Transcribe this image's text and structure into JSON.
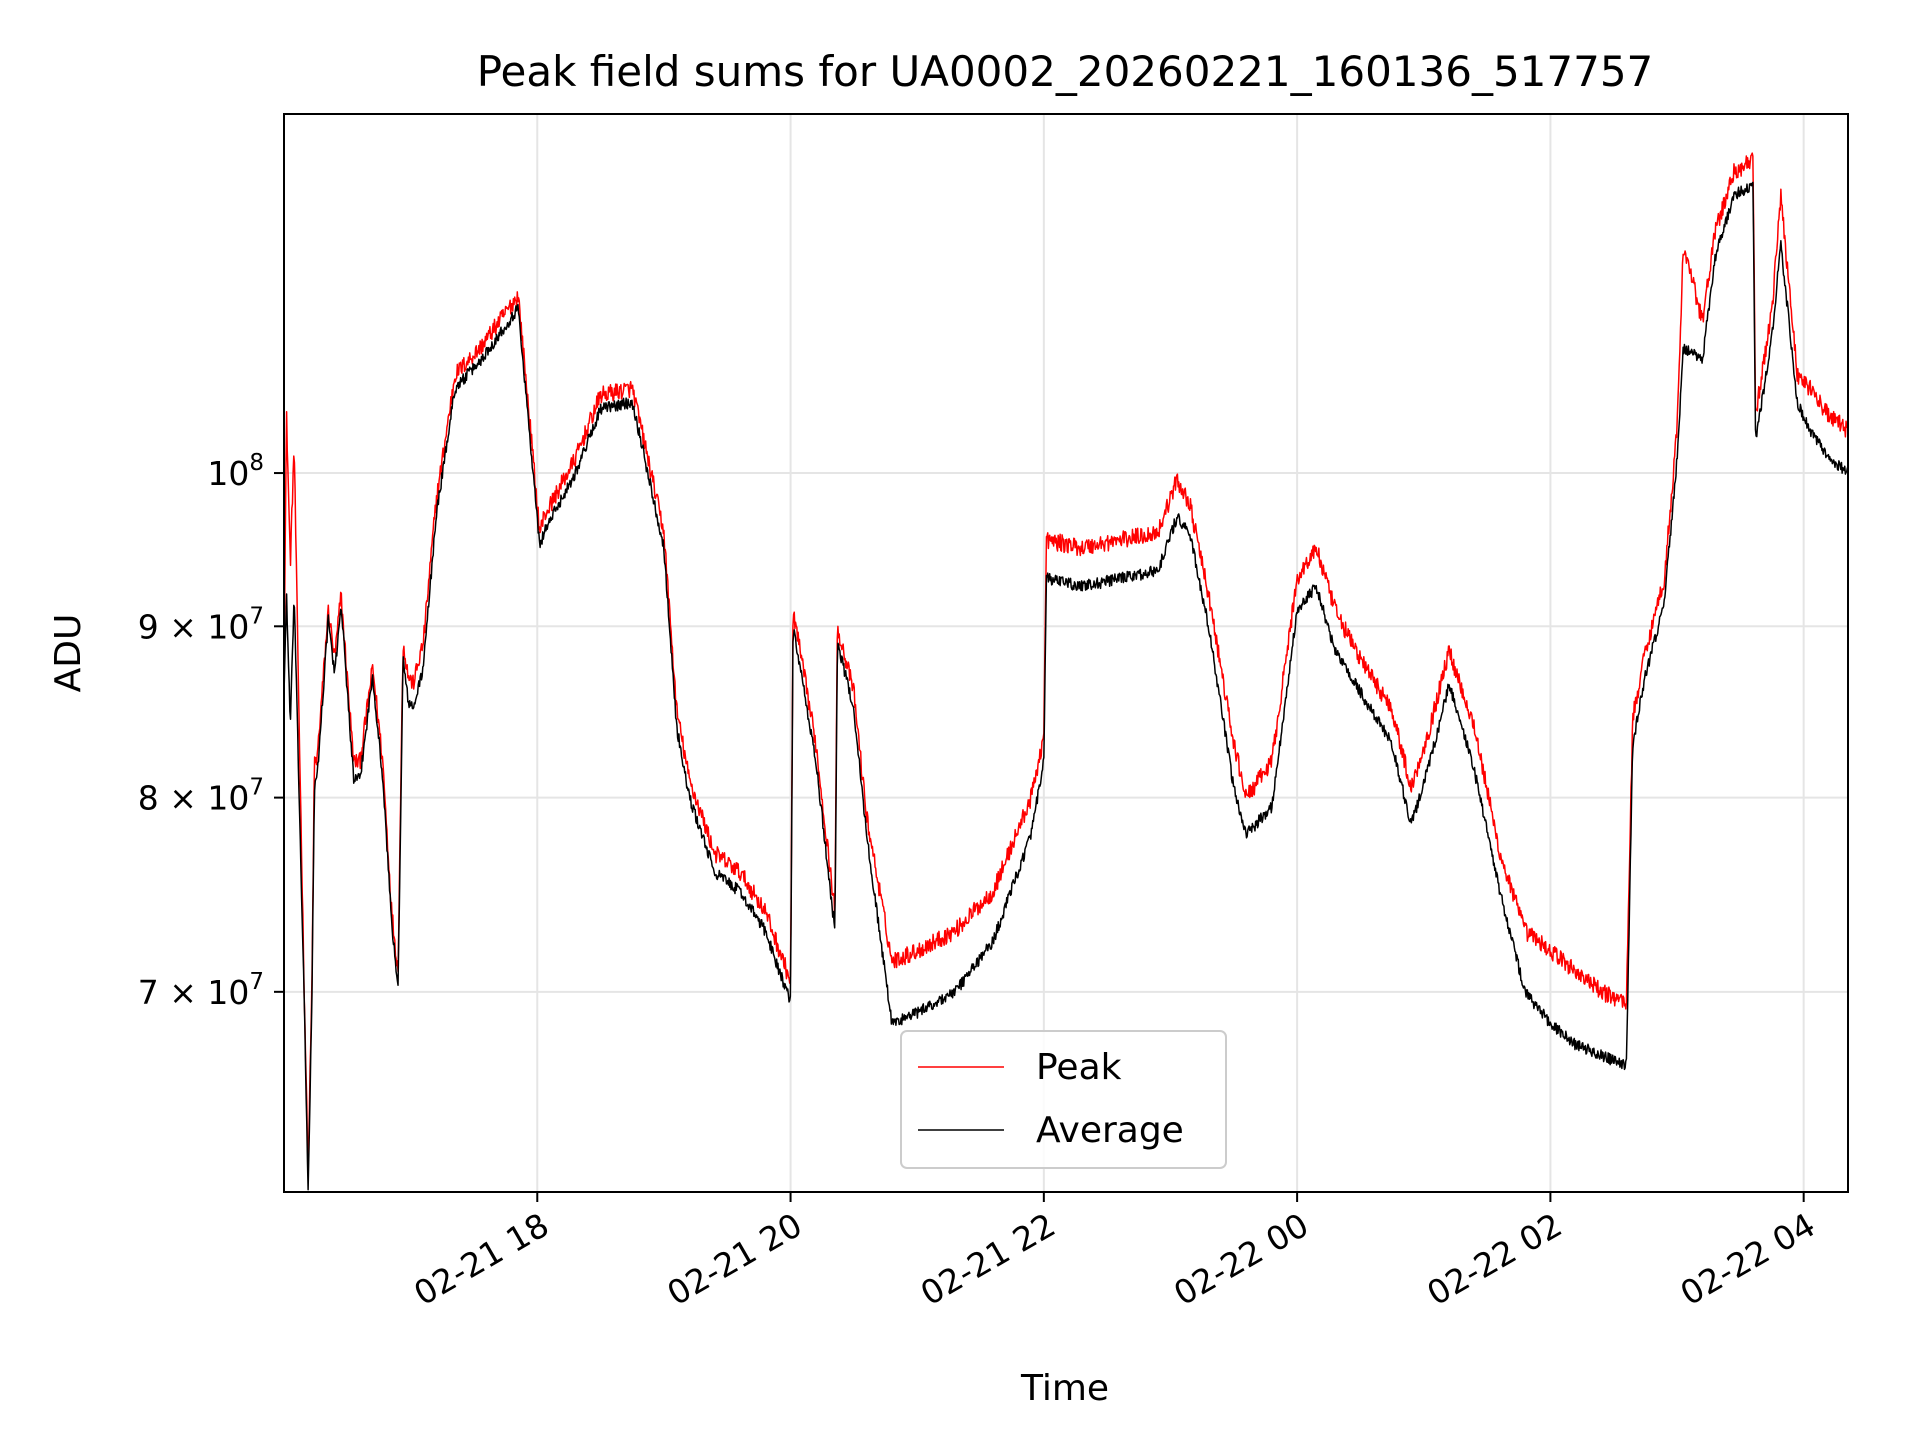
{
  "chart_data": {
    "type": "line",
    "title": "Peak field sums for UA0002_20260221_160136_517757",
    "xlabel": "Time",
    "ylabel": "ADU",
    "yscale": "log",
    "ylim": [
      61000000,
      128000000
    ],
    "x_unit": "hours since 02-21 16:00",
    "xlim": [
      0.0,
      12.35
    ],
    "x_ticks": [
      {
        "value": 2,
        "label": "02-21 18"
      },
      {
        "value": 4,
        "label": "02-21 20"
      },
      {
        "value": 6,
        "label": "02-21 22"
      },
      {
        "value": 8,
        "label": "02-22 00"
      },
      {
        "value": 10,
        "label": "02-22 02"
      },
      {
        "value": 12,
        "label": "02-22 04"
      }
    ],
    "y_ticks": [
      {
        "value": 70000000,
        "mantissa": "7",
        "times": "×",
        "base": "10",
        "exp": "7"
      },
      {
        "value": 80000000,
        "mantissa": "8",
        "times": "×",
        "base": "10",
        "exp": "7"
      },
      {
        "value": 90000000,
        "mantissa": "9",
        "times": "×",
        "base": "10",
        "exp": "7"
      },
      {
        "value": 100000000,
        "mantissa": "",
        "times": "",
        "base": "10",
        "exp": "8"
      }
    ],
    "grid": true,
    "legend_position": "lower-center",
    "series": [
      {
        "name": "Peak",
        "color": "#ff0000",
        "noise": 0.006,
        "x": [
          0.0,
          0.02,
          0.05,
          0.08,
          0.12,
          0.16,
          0.19,
          0.22,
          0.24,
          0.26,
          0.35,
          0.4,
          0.45,
          0.55,
          0.6,
          0.7,
          0.78,
          0.85,
          0.9,
          0.94,
          0.98,
          1.02,
          1.1,
          1.2,
          1.35,
          1.45,
          1.55,
          1.7,
          1.85,
          2.02,
          2.05,
          2.3,
          2.5,
          2.75,
          2.8,
          3.0,
          3.1,
          3.2,
          3.3,
          3.4,
          3.6,
          3.8,
          4.0,
          4.02,
          4.2,
          4.35,
          4.37,
          4.5,
          4.6,
          4.8,
          5.0,
          5.3,
          5.6,
          5.9,
          6.0,
          6.02,
          6.3,
          6.6,
          6.9,
          7.05,
          7.15,
          7.3,
          7.5,
          7.6,
          7.8,
          8.0,
          8.15,
          8.3,
          8.5,
          8.75,
          8.9,
          9.05,
          9.2,
          9.4,
          9.6,
          9.8,
          10.0,
          10.2,
          10.4,
          10.6,
          10.65,
          10.75,
          10.9,
          11.0,
          11.05,
          11.2,
          11.3,
          11.45,
          11.6,
          11.62,
          11.75,
          11.82,
          11.95,
          12.05,
          12.2,
          12.35
        ],
        "y": [
          88000000,
          104000000,
          94000000,
          102000000,
          84000000,
          70000000,
          62000000,
          70000000,
          82000000,
          82000000,
          91000000,
          88000000,
          92000000,
          82000000,
          82000000,
          87500000,
          82000000,
          74000000,
          71000000,
          89000000,
          87000000,
          86500000,
          89000000,
          98000000,
          107000000,
          108000000,
          109000000,
          111000000,
          113000000,
          96000000,
          97000000,
          101000000,
          105500000,
          106000000,
          104000000,
          96000000,
          85000000,
          81000000,
          79000000,
          77000000,
          76000000,
          74000000,
          70500000,
          91000000,
          83000000,
          74000000,
          90000000,
          86000000,
          79000000,
          71500000,
          72000000,
          73000000,
          75000000,
          80000000,
          83500000,
          95500000,
          95000000,
          95500000,
          96000000,
          99500000,
          98000000,
          92000000,
          83000000,
          80000000,
          82000000,
          93000000,
          95000000,
          91000000,
          88000000,
          85000000,
          80500000,
          84000000,
          88500000,
          84000000,
          77000000,
          73000000,
          72000000,
          71000000,
          70000000,
          69500000,
          84500000,
          88500000,
          93000000,
          103000000,
          117000000,
          111000000,
          118000000,
          123000000,
          124000000,
          104000000,
          112000000,
          121000000,
          107000000,
          106000000,
          104000000,
          103000000
        ]
      },
      {
        "name": "Average",
        "color": "#000000",
        "noise": 0.004,
        "x": [
          0.0,
          0.02,
          0.05,
          0.08,
          0.12,
          0.16,
          0.19,
          0.22,
          0.24,
          0.26,
          0.35,
          0.4,
          0.45,
          0.55,
          0.6,
          0.7,
          0.78,
          0.85,
          0.9,
          0.94,
          0.98,
          1.02,
          1.1,
          1.2,
          1.35,
          1.45,
          1.55,
          1.7,
          1.85,
          2.02,
          2.05,
          2.3,
          2.5,
          2.75,
          2.8,
          3.0,
          3.1,
          3.2,
          3.3,
          3.4,
          3.6,
          3.8,
          4.0,
          4.02,
          4.2,
          4.35,
          4.37,
          4.5,
          4.6,
          4.8,
          5.0,
          5.3,
          5.6,
          5.9,
          6.0,
          6.02,
          6.3,
          6.6,
          6.9,
          7.05,
          7.15,
          7.3,
          7.5,
          7.6,
          7.8,
          8.0,
          8.15,
          8.3,
          8.5,
          8.75,
          8.9,
          9.05,
          9.2,
          9.4,
          9.6,
          9.8,
          10.0,
          10.2,
          10.4,
          10.6,
          10.65,
          10.75,
          10.9,
          11.0,
          11.05,
          11.2,
          11.3,
          11.45,
          11.6,
          11.62,
          11.75,
          11.82,
          11.95,
          12.05,
          12.2,
          12.35
        ],
        "y": [
          86000000,
          92000000,
          84000000,
          92000000,
          80000000,
          69500000,
          61000000,
          69500000,
          80500000,
          81000000,
          90500000,
          87000000,
          91500000,
          81000000,
          81000000,
          87000000,
          81000000,
          73500000,
          70000000,
          88000000,
          85500000,
          85000000,
          87500000,
          97000000,
          106000000,
          107000000,
          108000000,
          110000000,
          112000000,
          95000000,
          96000000,
          100000000,
          104500000,
          105000000,
          103000000,
          95000000,
          84000000,
          80000000,
          78000000,
          76000000,
          75000000,
          73000000,
          69500000,
          90000000,
          82000000,
          73000000,
          89000000,
          85000000,
          78000000,
          68500000,
          69000000,
          70000000,
          72500000,
          78000000,
          82000000,
          93000000,
          92500000,
          93000000,
          93500000,
          97000000,
          96000000,
          90000000,
          80500000,
          78000000,
          79500000,
          91000000,
          92500000,
          88500000,
          86000000,
          83000000,
          78500000,
          82000000,
          86500000,
          81500000,
          75000000,
          70000000,
          68500000,
          67500000,
          67000000,
          66500000,
          83000000,
          87000000,
          91500000,
          101000000,
          109000000,
          108000000,
          116000000,
          121000000,
          122000000,
          102000000,
          110000000,
          117000000,
          105000000,
          103000000,
          101000000,
          100000000
        ]
      }
    ]
  }
}
